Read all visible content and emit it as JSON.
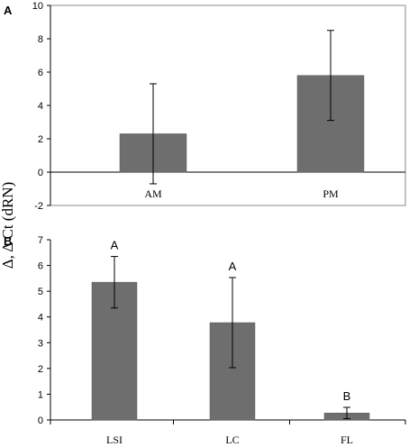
{
  "figure": {
    "ylabel": "Δ, Δ Ct (dRN)"
  },
  "chart_data": [
    {
      "type": "bar",
      "panel": "A",
      "categories": [
        "AM",
        "PM"
      ],
      "values": [
        2.3,
        5.8
      ],
      "errors": [
        3.0,
        2.7
      ],
      "significance": [
        "",
        ""
      ],
      "ylim": [
        -2,
        10
      ],
      "yticks": [
        "-2",
        "0",
        "2",
        "4",
        "6",
        "8",
        "10"
      ],
      "ytick_values": [
        -2,
        0,
        2,
        4,
        6,
        8,
        10
      ],
      "grid": false,
      "colors": {
        "bar": "#6e6e6e"
      }
    },
    {
      "type": "bar",
      "panel": "B",
      "categories": [
        "LSI",
        "LC",
        "FL"
      ],
      "values": [
        5.35,
        3.78,
        0.27
      ],
      "errors": [
        1.0,
        1.75,
        0.22
      ],
      "significance": [
        "A",
        "A",
        "B"
      ],
      "ylim": [
        0,
        7
      ],
      "yticks": [
        "0",
        "1",
        "2",
        "3",
        "4",
        "5",
        "6",
        "7"
      ],
      "ytick_values": [
        0,
        1,
        2,
        3,
        4,
        5,
        6,
        7
      ],
      "grid": false,
      "colors": {
        "bar": "#6e6e6e"
      }
    }
  ]
}
